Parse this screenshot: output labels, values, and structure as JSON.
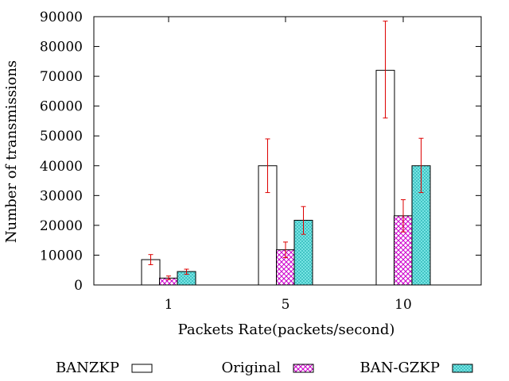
{
  "chart_data": {
    "type": "bar",
    "title": "",
    "xlabel": "Packets Rate(packets/second)",
    "ylabel": "Number of transmissions",
    "categories": [
      "1",
      "5",
      "10"
    ],
    "ylim": [
      0,
      90000
    ],
    "yticks": [
      "0",
      "10000",
      "20000",
      "30000",
      "40000",
      "50000",
      "60000",
      "70000",
      "80000",
      "90000"
    ],
    "grid": false,
    "legend_position": "bottom",
    "series": [
      {
        "name": "BANZKP",
        "pattern": "empty",
        "color": "#000000",
        "values": [
          8500,
          40000,
          72000
        ],
        "error_low": [
          6800,
          31000,
          56000
        ],
        "error_high": [
          10200,
          49000,
          88500
        ]
      },
      {
        "name": "Original",
        "pattern": "crosshatch",
        "color": "#cc00cc",
        "values": [
          2300,
          11800,
          23200
        ],
        "error_low": [
          1800,
          9200,
          17800
        ],
        "error_high": [
          3000,
          14400,
          28600
        ]
      },
      {
        "name": "BAN-GZKP",
        "pattern": "dots",
        "color": "#00c8c8",
        "values": [
          4500,
          21700,
          40000
        ],
        "error_low": [
          3600,
          17000,
          31000
        ],
        "error_high": [
          5300,
          26300,
          49200
        ]
      }
    ],
    "error_bar_color": "#dd0000"
  }
}
